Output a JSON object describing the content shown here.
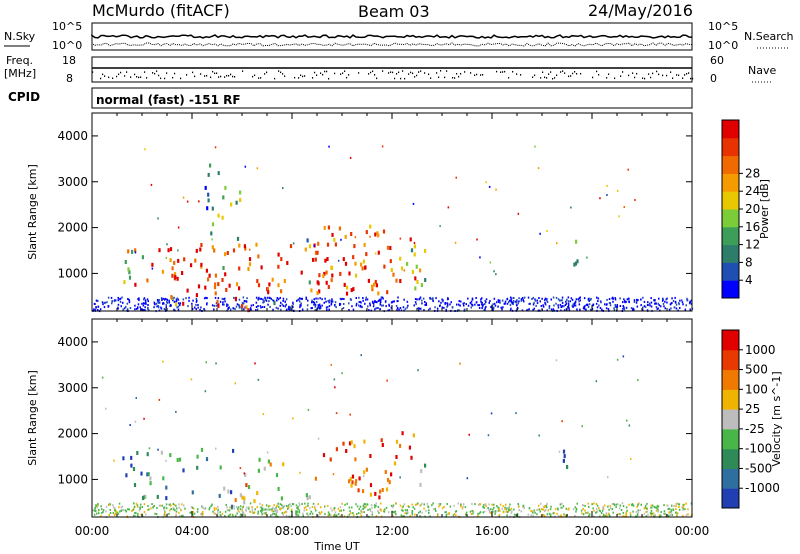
{
  "header": {
    "station": "McMurdo (fitACF)",
    "beam": "Beam 03",
    "date": "24/May/2016"
  },
  "summary": {
    "nsky_label": "N.Sky",
    "nsearch_label": "N.Search",
    "log_ticks": [
      "10^5",
      "10^0"
    ],
    "freq_label_1": "Freq.",
    "freq_label_2": "[MHz]",
    "freq_ticks": [
      "18",
      "8"
    ],
    "nave_label": "Nave",
    "nave_ticks": [
      "60",
      "0"
    ],
    "cpid_label": "CPID",
    "cpid_value": "normal (fast) -151 RF"
  },
  "chart_data": [
    {
      "type": "heatmap",
      "name": "power",
      "ylabel": "Slant Range [km]",
      "xlabel": "Time UT",
      "x_ticks": [
        "00:00",
        "04:00",
        "08:00",
        "12:00",
        "16:00",
        "20:00",
        "00:00"
      ],
      "xlim_hours": [
        0,
        24
      ],
      "ylim": [
        180,
        4500
      ],
      "y_ticks": [
        1000,
        2000,
        3000,
        4000
      ],
      "colorbar_label": "Power [dB]",
      "colorbar_ticks": [
        "4",
        "8",
        "12",
        "16",
        "20",
        "24",
        "28"
      ],
      "colorbar_colors": [
        "#0000ff",
        "#1f4fb3",
        "#2e7d6b",
        "#3d9e5a",
        "#7ccc3a",
        "#e8c800",
        "#f59b00",
        "#f06a00",
        "#e83200",
        "#e00000"
      ],
      "blobs": [
        {
          "t0": 1.2,
          "t1": 13.4,
          "r0": 600,
          "r1": 1700,
          "level": 0.85
        },
        {
          "t0": 1.3,
          "t1": 5.5,
          "r0": 700,
          "r1": 1600,
          "level": 0.95
        },
        {
          "t0": 8.5,
          "t1": 13.3,
          "r0": 600,
          "r1": 2100,
          "level": 0.75
        },
        {
          "t0": 3.0,
          "t1": 7.5,
          "r0": 200,
          "r1": 700,
          "level": 0.9
        },
        {
          "t0": 4.5,
          "t1": 6.0,
          "r0": 1700,
          "r1": 3500,
          "level": 0.35
        },
        {
          "t0": 18.8,
          "t1": 19.4,
          "r0": 1000,
          "r1": 2000,
          "level": 0.4
        }
      ]
    },
    {
      "type": "heatmap",
      "name": "velocity",
      "ylabel": "Slant Range [km]",
      "xlabel": "Time UT",
      "x_ticks": [
        "00:00",
        "04:00",
        "08:00",
        "12:00",
        "16:00",
        "20:00",
        "00:00"
      ],
      "xlim_hours": [
        0,
        24
      ],
      "ylim": [
        180,
        4500
      ],
      "y_ticks": [
        1000,
        2000,
        3000,
        4000
      ],
      "colorbar_label": "Velocity [m s^-1]",
      "colorbar_ticks": [
        "1000",
        "500",
        "100",
        "25",
        "-25",
        "-100",
        "-500",
        "-1000"
      ],
      "colorbar_colors": [
        "#1f3fb3",
        "#2e6fa0",
        "#2e8b57",
        "#49b649",
        "#bdbdbd",
        "#f0b400",
        "#f07a00",
        "#e83a00",
        "#e00000"
      ],
      "blobs": [
        {
          "t0": 1.2,
          "t1": 5.8,
          "r0": 600,
          "r1": 1700,
          "level": 0.25
        },
        {
          "t0": 5.5,
          "t1": 8.2,
          "r0": 200,
          "r1": 1500,
          "level": 0.6
        },
        {
          "t0": 8.5,
          "t1": 13.3,
          "r0": 600,
          "r1": 2100,
          "level": 0.8
        },
        {
          "t0": 18.8,
          "t1": 19.4,
          "r0": 1000,
          "r1": 2000,
          "level": 0.2
        }
      ]
    }
  ]
}
